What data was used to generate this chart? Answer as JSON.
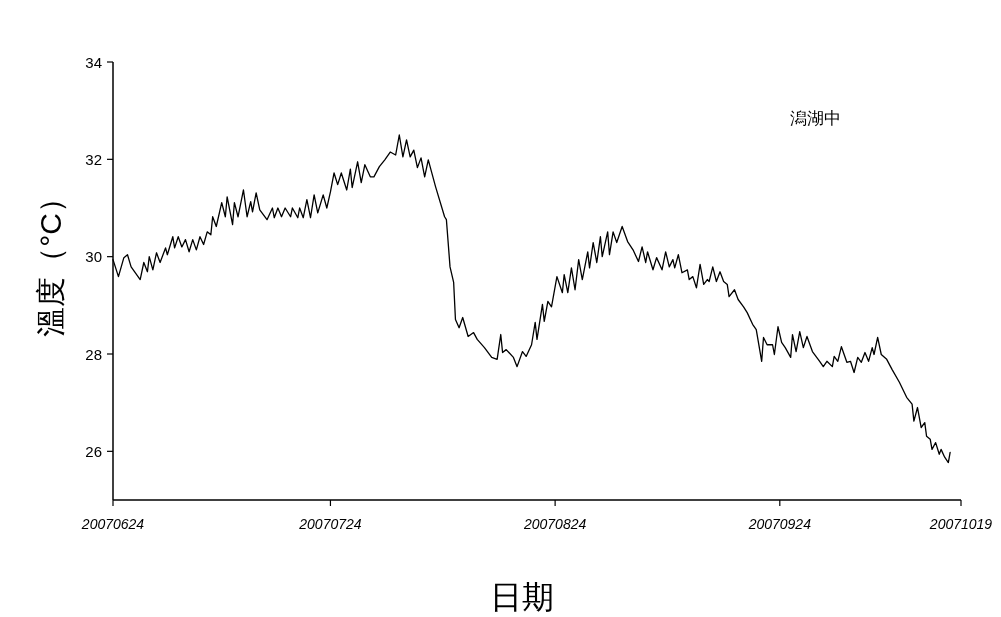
{
  "chart_data": {
    "type": "line",
    "xlabel": "日期",
    "ylabel": "溫度（°C）",
    "annotations": [
      "潟湖中"
    ],
    "xlim": [
      "2007-06-24",
      "2007-10-19"
    ],
    "ylim": [
      25,
      34
    ],
    "yticks": [
      26,
      28,
      30,
      32,
      34
    ],
    "xticks": [
      {
        "value": "2007-06-24",
        "label": "20070624"
      },
      {
        "value": "2007-07-24",
        "label": "20070724"
      },
      {
        "value": "2007-08-24",
        "label": "20070824"
      },
      {
        "value": "2007-09-24",
        "label": "20070924"
      },
      {
        "value": "2007-10-19",
        "label": "20071019"
      }
    ],
    "grid": false,
    "x": [
      "2007-06-24T00:00",
      "2007-06-24T18:00",
      "2007-06-25T12:00",
      "2007-06-26T00:00",
      "2007-06-26T12:00",
      "2007-06-27T18:00",
      "2007-06-28T06:00",
      "2007-06-28T18:00",
      "2007-06-29T00:00",
      "2007-06-29T12:00",
      "2007-06-30T00:00",
      "2007-06-30T12:00",
      "2007-07-01T06:00",
      "2007-07-01T12:00",
      "2007-07-02T06:00",
      "2007-07-02T12:00",
      "2007-07-03T00:00",
      "2007-07-03T12:00",
      "2007-07-04T00:00",
      "2007-07-04T12:00",
      "2007-07-05T00:00",
      "2007-07-05T12:00",
      "2007-07-06T00:00",
      "2007-07-06T12:00",
      "2007-07-07T00:00",
      "2007-07-07T12:00",
      "2007-07-07T18:00",
      "2007-07-08T06:00",
      "2007-07-09T00:00",
      "2007-07-09T12:00",
      "2007-07-09T18:00",
      "2007-07-10T12:00",
      "2007-07-10T18:00",
      "2007-07-11T06:00",
      "2007-07-12T00:00",
      "2007-07-12T12:00",
      "2007-07-13T00:00",
      "2007-07-13T06:00",
      "2007-07-13T18:00",
      "2007-07-14T06:00",
      "2007-07-15T06:00",
      "2007-07-16T00:00",
      "2007-07-16T06:00",
      "2007-07-16T18:00",
      "2007-07-17T06:00",
      "2007-07-17T18:00",
      "2007-07-18T12:00",
      "2007-07-18T18:00",
      "2007-07-19T12:00",
      "2007-07-19T18:00",
      "2007-07-20T06:00",
      "2007-07-20T18:00",
      "2007-07-21T06:00",
      "2007-07-21T18:00",
      "2007-07-22T06:00",
      "2007-07-23T00:00",
      "2007-07-23T12:00",
      "2007-07-24T00:00",
      "2007-07-24T12:00",
      "2007-07-25T00:00",
      "2007-07-25T12:00",
      "2007-07-26T06:00",
      "2007-07-26T18:00",
      "2007-07-27T00:00",
      "2007-07-27T18:00",
      "2007-07-28T06:00",
      "2007-07-28T18:00",
      "2007-07-29T12:00",
      "2007-07-30T00:00",
      "2007-07-30T18:00",
      "2007-07-31T12:00",
      "2007-08-01T06:00",
      "2007-08-02T00:00",
      "2007-08-02T12:00",
      "2007-08-03T00:00",
      "2007-08-03T12:00",
      "2007-08-04T00:00",
      "2007-08-04T12:00",
      "2007-08-05T00:00",
      "2007-08-05T12:00",
      "2007-08-06T00:00",
      "2007-08-06T12:00",
      "2007-08-07T12:00",
      "2007-08-08T18:00",
      "2007-08-09T00:00",
      "2007-08-09T12:00",
      "2007-08-10T00:00",
      "2007-08-10T06:00",
      "2007-08-10T18:00",
      "2007-08-11T06:00",
      "2007-08-12T00:00",
      "2007-08-12T18:00",
      "2007-08-13T06:00",
      "2007-08-14T06:00",
      "2007-08-15T06:00",
      "2007-08-16T00:00",
      "2007-08-16T12:00",
      "2007-08-16T18:00",
      "2007-08-17T06:00",
      "2007-08-18T06:00",
      "2007-08-18T18:00",
      "2007-08-19T12:00",
      "2007-08-20T00:00",
      "2007-08-20T18:00",
      "2007-08-21T06:00",
      "2007-08-21T12:00",
      "2007-08-22T06:00",
      "2007-08-22T12:00",
      "2007-08-23T00:00",
      "2007-08-23T12:00",
      "2007-08-24T06:00",
      "2007-08-25T00:00",
      "2007-08-25T06:00",
      "2007-08-25T18:00",
      "2007-08-26T06:00",
      "2007-08-26T18:00",
      "2007-08-27T06:00",
      "2007-08-27T18:00",
      "2007-08-28T12:00",
      "2007-08-28T18:00",
      "2007-08-29T06:00",
      "2007-08-29T18:00",
      "2007-08-30T06:00",
      "2007-08-30T12:00",
      "2007-08-31T06:00",
      "2007-08-31T12:00",
      "2007-09-01T00:00",
      "2007-09-01T12:00",
      "2007-09-02T06:00",
      "2007-09-03T00:00",
      "2007-09-03T18:00",
      "2007-09-04T12:00",
      "2007-09-05T00:00",
      "2007-09-05T12:00",
      "2007-09-05T18:00",
      "2007-09-06T12:00",
      "2007-09-07T00:00",
      "2007-09-07T18:00",
      "2007-09-08T06:00",
      "2007-09-08T18:00",
      "2007-09-09T06:00",
      "2007-09-09T12:00",
      "2007-09-10T00:00",
      "2007-09-10T12:00",
      "2007-09-11T06:00",
      "2007-09-11T12:00",
      "2007-09-12T00:00",
      "2007-09-12T12:00",
      "2007-09-13T00:00",
      "2007-09-13T12:00",
      "2007-09-14T00:00",
      "2007-09-14T06:00",
      "2007-09-14T18:00",
      "2007-09-15T06:00",
      "2007-09-15T18:00",
      "2007-09-16T06:00",
      "2007-09-16T18:00",
      "2007-09-17T00:00",
      "2007-09-17T18:00",
      "2007-09-18T06:00",
      "2007-09-19T00:00",
      "2007-09-19T12:00",
      "2007-09-20T06:00",
      "2007-09-20T18:00",
      "2007-09-21T12:00",
      "2007-09-21T18:00",
      "2007-09-22T06:00",
      "2007-09-23T00:00",
      "2007-09-23T06:00",
      "2007-09-23T18:00",
      "2007-09-24T06:00",
      "2007-09-24T18:00",
      "2007-09-25T12:00",
      "2007-09-25T18:00",
      "2007-09-26T06:00",
      "2007-09-26T18:00",
      "2007-09-27T06:00",
      "2007-09-27T18:00",
      "2007-09-28T12:00",
      "2007-09-29T12:00",
      "2007-09-30T00:00",
      "2007-09-30T12:00",
      "2007-10-01T06:00",
      "2007-10-01T12:00",
      "2007-10-02T00:00",
      "2007-10-02T12:00",
      "2007-10-03T06:00",
      "2007-10-03T18:00",
      "2007-10-04T06:00",
      "2007-10-04T18:00",
      "2007-10-05T06:00",
      "2007-10-05T18:00",
      "2007-10-06T06:00",
      "2007-10-06T18:00",
      "2007-10-07T00:00",
      "2007-10-07T12:00",
      "2007-10-08T00:00",
      "2007-10-08T18:00",
      "2007-10-09T12:00",
      "2007-10-10T12:00",
      "2007-10-11T12:00",
      "2007-10-12T06:00",
      "2007-10-12T12:00",
      "2007-10-13T00:00",
      "2007-10-13T12:00",
      "2007-10-14T00:00",
      "2007-10-14T06:00",
      "2007-10-14T18:00",
      "2007-10-15T00:00",
      "2007-10-15T12:00",
      "2007-10-16T00:00",
      "2007-10-16T06:00",
      "2007-10-16T18:00",
      "2007-10-17T06:00",
      "2007-10-17T12:00"
    ],
    "series": [
      {
        "color": "#000000",
        "values": [
          29.94,
          29.59,
          29.98,
          30.04,
          29.79,
          29.53,
          29.88,
          29.69,
          30.0,
          29.73,
          30.08,
          29.88,
          30.18,
          30.04,
          30.41,
          30.18,
          30.41,
          30.2,
          30.35,
          30.1,
          30.35,
          30.14,
          30.41,
          30.25,
          30.51,
          30.45,
          30.82,
          30.62,
          31.11,
          30.82,
          31.23,
          30.66,
          31.11,
          30.82,
          31.37,
          30.82,
          31.13,
          30.92,
          31.31,
          30.96,
          30.76,
          31.0,
          30.8,
          31.0,
          30.82,
          31.0,
          30.82,
          31.0,
          30.8,
          31.0,
          30.8,
          31.17,
          30.8,
          31.27,
          30.9,
          31.27,
          31.0,
          31.33,
          31.72,
          31.48,
          31.72,
          31.37,
          31.8,
          31.42,
          31.95,
          31.52,
          31.89,
          31.64,
          31.64,
          31.85,
          31.99,
          32.15,
          32.09,
          32.5,
          32.05,
          32.4,
          32.05,
          32.19,
          31.83,
          32.03,
          31.64,
          31.99,
          31.44,
          30.82,
          30.76,
          29.79,
          29.47,
          28.71,
          28.54,
          28.75,
          28.36,
          28.44,
          28.3,
          28.13,
          27.93,
          27.89,
          28.4,
          28.03,
          28.09,
          27.93,
          27.74,
          28.05,
          27.95,
          28.19,
          28.65,
          28.3,
          29.02,
          28.67,
          29.08,
          28.97,
          29.59,
          29.26,
          29.63,
          29.26,
          29.77,
          29.32,
          29.94,
          29.53,
          30.1,
          29.77,
          30.29,
          29.88,
          30.41,
          30.0,
          30.51,
          30.04,
          30.51,
          30.29,
          30.62,
          30.31,
          30.14,
          29.9,
          30.2,
          29.88,
          30.1,
          29.73,
          29.98,
          29.73,
          30.1,
          29.79,
          29.94,
          29.77,
          30.04,
          29.67,
          29.73,
          29.53,
          29.59,
          29.36,
          29.84,
          29.43,
          29.53,
          29.49,
          29.79,
          29.49,
          29.69,
          29.49,
          29.43,
          29.18,
          29.32,
          29.12,
          28.97,
          28.85,
          28.61,
          28.5,
          27.85,
          28.34,
          28.19,
          28.19,
          27.99,
          28.56,
          28.24,
          28.13,
          27.93,
          28.4,
          28.05,
          28.46,
          28.13,
          28.36,
          28.05,
          27.85,
          27.74,
          27.85,
          27.74,
          27.95,
          27.85,
          28.15,
          27.83,
          27.85,
          27.62,
          27.93,
          27.83,
          28.03,
          27.85,
          28.13,
          27.99,
          28.34,
          27.99,
          27.89,
          27.68,
          27.42,
          27.11,
          26.97,
          26.62,
          26.9,
          26.49,
          26.59,
          26.31,
          26.25,
          26.04,
          26.18,
          25.94,
          26.04,
          25.88,
          25.77,
          25.98
        ]
      }
    ]
  }
}
